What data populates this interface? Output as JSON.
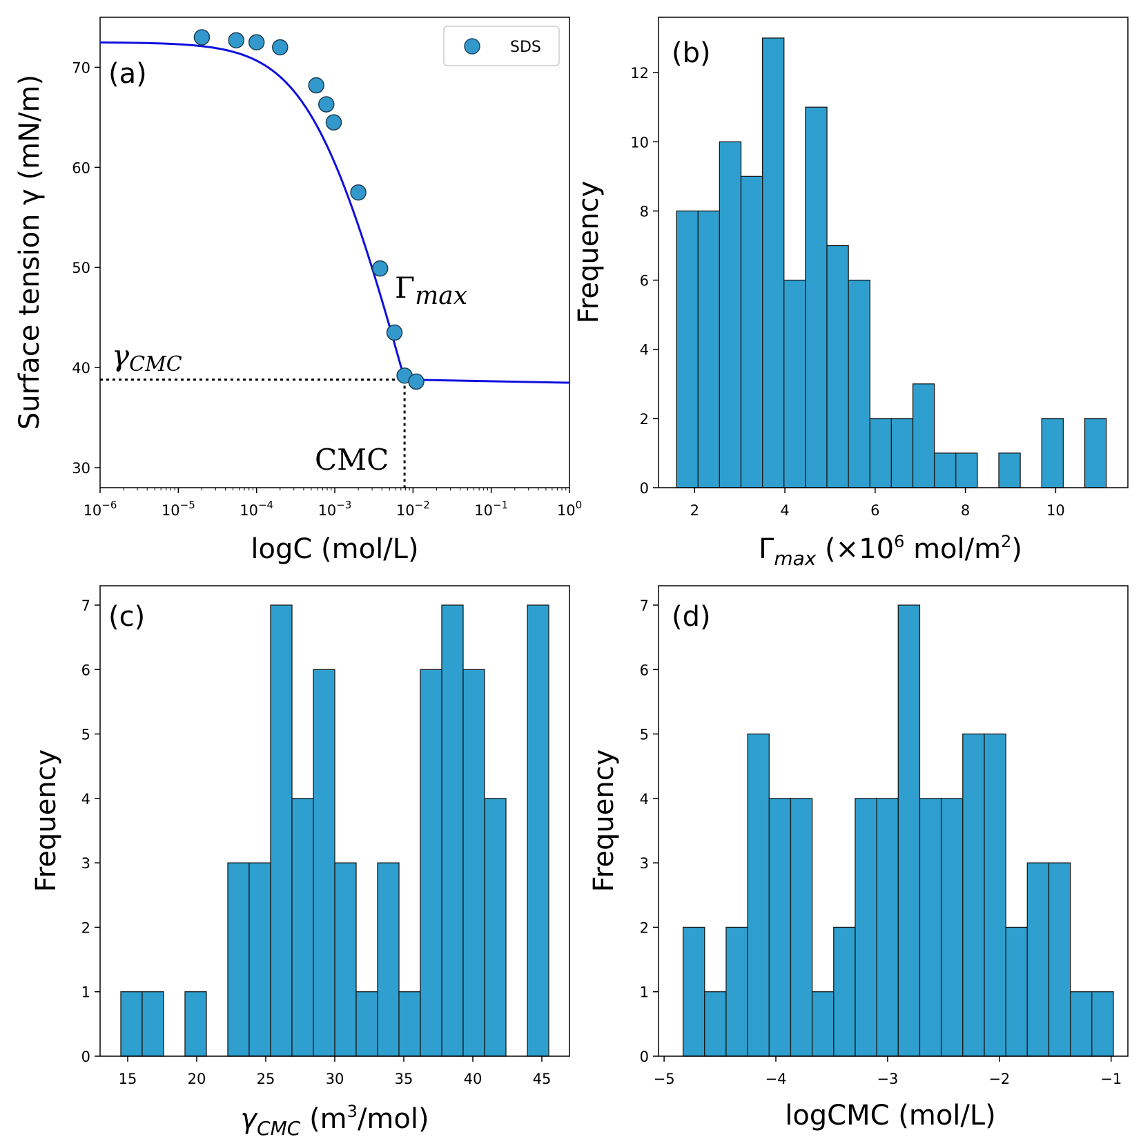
{
  "chart_data": [
    {
      "panel": "(a)",
      "type": "scatter",
      "xscale": "log",
      "xlim": [
        1e-06,
        1
      ],
      "ylim": [
        28,
        75
      ],
      "xlabel": "logC (mol/L)",
      "ylabel": "Surface tension γ (mN/m)",
      "xticks": [
        {
          "exp": "−6"
        },
        {
          "exp": "−5"
        },
        {
          "exp": "−4"
        },
        {
          "exp": "−3"
        },
        {
          "exp": "−2"
        },
        {
          "exp": "−1"
        },
        {
          "exp": "0"
        }
      ],
      "tick_base": "10",
      "yticks": [
        30,
        40,
        50,
        60,
        70
      ],
      "series": [
        {
          "name": "SDS",
          "color": "#3399cc",
          "x": [
            2e-05,
            5.5e-05,
            0.0001,
            0.0002,
            0.00058,
            0.00078,
            0.00097,
            0.002,
            0.0038,
            0.0058,
            0.0078,
            0.011
          ],
          "y": [
            73.0,
            72.7,
            72.5,
            72.0,
            68.2,
            66.3,
            64.5,
            57.5,
            49.9,
            43.5,
            39.2,
            38.6
          ]
        }
      ],
      "fit": {
        "color": "#1010dd",
        "gamma0": 72.5,
        "gamma_cmc": 38.8,
        "cmc": 0.0078,
        "a": 0.00068
      },
      "annotations": {
        "gamma_cmc_base": "γ",
        "gamma_cmc_sub": "CMC",
        "gamma_max_base": "Γ",
        "gamma_max_sub": "max",
        "cmc": "CMC"
      },
      "guide_lines": {
        "cmc_x": 0.0078,
        "gamma_cmc_y": 38.8
      },
      "legend": {
        "label": "SDS",
        "position": "top-right"
      }
    },
    {
      "panel": "(b)",
      "type": "bar",
      "subtype": "histogram",
      "xlim": [
        1.2,
        11.6
      ],
      "ylim": [
        0,
        13.6
      ],
      "xticks": [
        2,
        4,
        6,
        8,
        10
      ],
      "yticks": [
        0,
        2,
        4,
        6,
        8,
        10,
        12
      ],
      "bin_start": 1.6,
      "bin_width": 0.476,
      "values": [
        8,
        8,
        10,
        9,
        13,
        6,
        11,
        7,
        6,
        2,
        2,
        3,
        1,
        1,
        0,
        1,
        0,
        2,
        0,
        2
      ],
      "xlabel_base": "Γ",
      "xlabel_sub": "max",
      "xlabel_rest": " (×10",
      "xlabel_sup1": "6",
      "xlabel_rest2": " mol/m",
      "xlabel_sup2": "2",
      "xlabel_end": ")",
      "ylabel": "Frequency"
    },
    {
      "panel": "(c)",
      "type": "bar",
      "subtype": "histogram",
      "xlim": [
        13,
        47
      ],
      "ylim": [
        0,
        7.3
      ],
      "xticks": [
        15,
        20,
        25,
        30,
        35,
        40,
        45
      ],
      "yticks": [
        0,
        1,
        2,
        3,
        4,
        5,
        6,
        7
      ],
      "bin_start": 14.5,
      "bin_width": 1.55,
      "values": [
        1,
        1,
        0,
        1,
        0,
        3,
        3,
        7,
        4,
        6,
        3,
        1,
        3,
        1,
        6,
        7,
        6,
        4,
        0,
        7
      ],
      "xlabel_base": "γ",
      "xlabel_sub": "CMC",
      "xlabel_rest": " (m",
      "xlabel_sup1": "3",
      "xlabel_end": "/mol)",
      "ylabel": "Frequency"
    },
    {
      "panel": "(d)",
      "type": "bar",
      "subtype": "histogram",
      "xlim": [
        -5.05,
        -0.85
      ],
      "ylim": [
        0,
        7.3
      ],
      "xticks": [
        -5,
        -4,
        -3,
        -2,
        -1
      ],
      "xtick_labels": [
        "−5",
        "−4",
        "−3",
        "−2",
        "−1"
      ],
      "yticks": [
        0,
        1,
        2,
        3,
        4,
        5,
        6,
        7
      ],
      "bin_start": -4.83,
      "bin_width": 0.1925,
      "values": [
        2,
        1,
        2,
        5,
        4,
        4,
        1,
        2,
        4,
        4,
        7,
        4,
        4,
        5,
        5,
        2,
        3,
        3,
        1,
        1
      ],
      "xlabel": "logCMC (mol/L)",
      "ylabel": "Frequency"
    }
  ],
  "style": {
    "bar_fill": "#2e9fcf",
    "bar_edge": "#1a1a1a"
  }
}
